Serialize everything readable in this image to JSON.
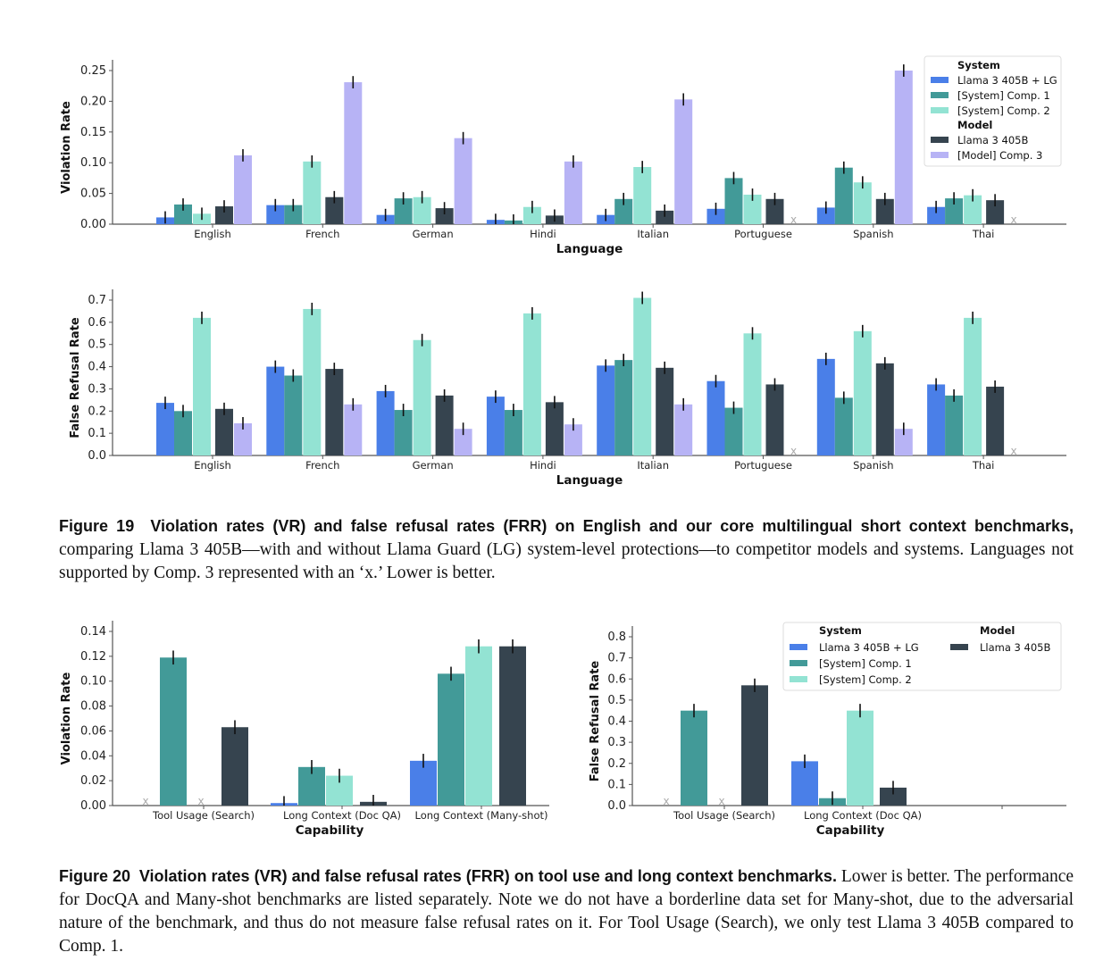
{
  "colors": {
    "llama_lg": "#4a7fe8",
    "comp1": "#429a98",
    "comp2": "#93e3d3",
    "llama": "#36444f",
    "comp3": "#b7b3f5"
  },
  "legend_top": {
    "system_header": "System",
    "model_header": "Model",
    "items": [
      "Llama 3 405B + LG",
      "[System] Comp. 1",
      "[System] Comp. 2",
      "Llama 3 405B",
      "[Model] Comp. 3"
    ]
  },
  "legend_bottom": {
    "system_header": "System",
    "model_header": "Model",
    "items": [
      "Llama 3 405B + LG",
      "[System] Comp. 1",
      "[System] Comp. 2",
      "Llama 3 405B"
    ]
  },
  "missing_marker": "x",
  "chart_data": [
    {
      "type": "bar",
      "title": "",
      "xlabel": "Language",
      "ylabel": "Violation Rate",
      "ylim": [
        0,
        0.25
      ],
      "yticks": [
        "0.00",
        "0.05",
        "0.10",
        "0.15",
        "0.20",
        "0.25"
      ],
      "categories": [
        "English",
        "French",
        "German",
        "Hindi",
        "Italian",
        "Portuguese",
        "Spanish",
        "Thai"
      ],
      "series": [
        {
          "name": "Llama 3 405B + LG",
          "values": [
            0.011,
            0.031,
            0.015,
            0.007,
            0.015,
            0.025,
            0.027,
            0.028
          ]
        },
        {
          "name": "[System] Comp. 1",
          "values": [
            0.032,
            0.031,
            0.042,
            0.006,
            0.041,
            0.075,
            0.092,
            0.042
          ]
        },
        {
          "name": "[System] Comp. 2",
          "values": [
            0.017,
            0.102,
            0.044,
            0.028,
            0.093,
            0.048,
            0.068,
            0.047
          ]
        },
        {
          "name": "Llama 3 405B",
          "values": [
            0.029,
            0.044,
            0.026,
            0.014,
            0.022,
            0.041,
            0.041,
            0.039
          ]
        },
        {
          "name": "[Model] Comp. 3",
          "values": [
            0.112,
            0.231,
            0.14,
            0.102,
            0.203,
            null,
            0.25,
            null
          ]
        }
      ],
      "legend": "top-right"
    },
    {
      "type": "bar",
      "title": "",
      "xlabel": "Language",
      "ylabel": "False Refusal Rate",
      "ylim": [
        0,
        0.7
      ],
      "yticks": [
        "0.0",
        "0.1",
        "0.2",
        "0.3",
        "0.4",
        "0.5",
        "0.6",
        "0.7"
      ],
      "categories": [
        "English",
        "French",
        "German",
        "Hindi",
        "Italian",
        "Portuguese",
        "Spanish",
        "Thai"
      ],
      "series": [
        {
          "name": "Llama 3 405B + LG",
          "values": [
            0.237,
            0.4,
            0.29,
            0.265,
            0.405,
            0.335,
            0.435,
            0.32
          ]
        },
        {
          "name": "[System] Comp. 1",
          "values": [
            0.2,
            0.36,
            0.205,
            0.205,
            0.43,
            0.215,
            0.26,
            0.27
          ]
        },
        {
          "name": "[System] Comp. 2",
          "values": [
            0.62,
            0.66,
            0.52,
            0.64,
            0.71,
            0.55,
            0.56,
            0.62
          ]
        },
        {
          "name": "Llama 3 405B",
          "values": [
            0.21,
            0.39,
            0.27,
            0.24,
            0.395,
            0.32,
            0.415,
            0.31
          ]
        },
        {
          "name": "[Model] Comp. 3",
          "values": [
            0.145,
            0.23,
            0.12,
            0.14,
            0.23,
            null,
            0.12,
            null
          ]
        }
      ]
    },
    {
      "type": "bar",
      "title": "",
      "xlabel": "Capability",
      "ylabel": "Violation Rate",
      "ylim": [
        0,
        0.14
      ],
      "yticks": [
        "0.00",
        "0.02",
        "0.04",
        "0.06",
        "0.08",
        "0.10",
        "0.12",
        "0.14"
      ],
      "categories": [
        "Tool Usage (Search)",
        "Long Context (Doc QA)",
        "Long Context (Many-shot)"
      ],
      "series": [
        {
          "name": "Llama 3 405B + LG",
          "values": [
            null,
            0.002,
            0.036
          ]
        },
        {
          "name": "[System] Comp. 1",
          "values": [
            0.119,
            0.031,
            0.106
          ]
        },
        {
          "name": "[System] Comp. 2",
          "values": [
            null,
            0.024,
            0.128
          ]
        },
        {
          "name": "Llama 3 405B",
          "values": [
            0.063,
            0.003,
            0.128
          ]
        }
      ]
    },
    {
      "type": "bar",
      "title": "",
      "xlabel": "Capability",
      "ylabel": "False Refusal Rate",
      "ylim": [
        0,
        0.8
      ],
      "yticks": [
        "0.0",
        "0.1",
        "0.2",
        "0.3",
        "0.4",
        "0.5",
        "0.6",
        "0.7",
        "0.8"
      ],
      "categories": [
        "Tool Usage (Search)",
        "Long Context (Doc QA)"
      ],
      "series": [
        {
          "name": "Llama 3 405B + LG",
          "values": [
            null,
            0.21
          ]
        },
        {
          "name": "[System] Comp. 1",
          "values": [
            0.45,
            0.035
          ]
        },
        {
          "name": "[System] Comp. 2",
          "values": [
            null,
            0.45
          ]
        },
        {
          "name": "Llama 3 405B",
          "values": [
            0.57,
            0.085
          ]
        }
      ],
      "legend": "top-right"
    }
  ],
  "captions": {
    "fig19_label": "Figure 19",
    "fig19_bold": "Violation rates (VR) and false refusal rates (FRR) on English and our core multilingual short context benchmarks,",
    "fig19_text": "comparing Llama 3 405B—with and without Llama Guard (LG) system-level protections—to competitor models and systems. Languages not supported by Comp. 3 represented with an ‘x.’ Lower is better.",
    "fig20_label": "Figure 20",
    "fig20_bold": "Violation rates (VR) and false refusal rates (FRR) on tool use and long context benchmarks.",
    "fig20_text": "Lower is better. The performance for DocQA and Many-shot benchmarks are listed separately. Note we do not have a borderline data set for Many-shot, due to the adversarial nature of the benchmark, and thus do not measure false refusal rates on it. For Tool Usage (Search), we only test Llama 3 405B compared to Comp. 1."
  }
}
